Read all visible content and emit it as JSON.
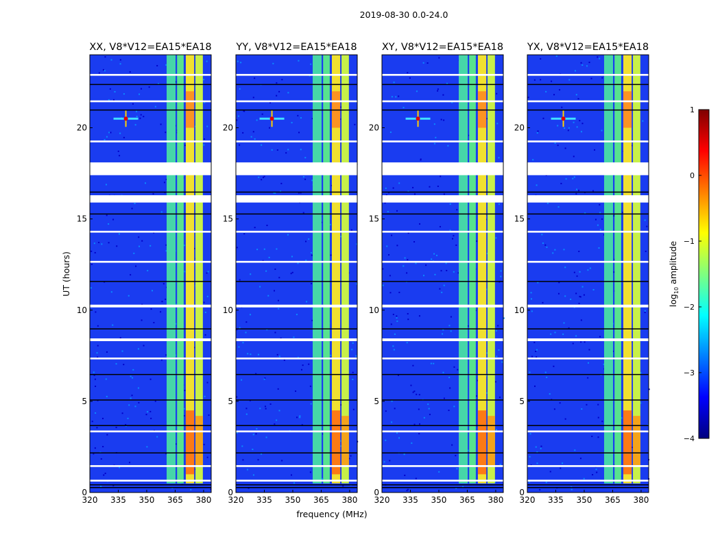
{
  "chart_data": {
    "type": "heatmap",
    "suptitle": "2019-08-30 0.0-24.0",
    "xlabel": "frequency (MHz)",
    "ylabel": "UT (hours)",
    "xlim": [
      320,
      384
    ],
    "ylim": [
      0,
      24
    ],
    "xticks": [
      "320",
      "335",
      "350",
      "365",
      "380"
    ],
    "xtick_values": [
      320,
      335,
      350,
      365,
      380
    ],
    "yticks": [
      "0",
      "5",
      "10",
      "15",
      "20"
    ],
    "ytick_values": [
      0,
      5,
      10,
      15,
      20
    ],
    "panels": [
      {
        "title": "XX, V8*V12=EA15*EA18"
      },
      {
        "title": "YY, V8*V12=EA15*EA18"
      },
      {
        "title": "XY, V8*V12=EA15*EA18"
      },
      {
        "title": "YX, V8*V12=EA15*EA18"
      }
    ],
    "colorbar": {
      "label_prefix": "log",
      "label_sub": "10",
      "label_suffix": " amplitude",
      "range": [
        -4,
        1
      ],
      "ticks": [
        "1",
        "0",
        "−1",
        "−2",
        "−3",
        "−4"
      ],
      "tick_values": [
        1,
        0,
        -1,
        -2,
        -3,
        -4
      ],
      "colormap": [
        "#00007f",
        "#0000ff",
        "#007fff",
        "#00ffff",
        "#7fff7f",
        "#ffff00",
        "#ff7f00",
        "#ff0000",
        "#7f0000"
      ]
    },
    "background_level": -3.2,
    "rfi_bands": [
      {
        "f0": 360.5,
        "f1": 365.2,
        "t0": 0.5,
        "t1": 24,
        "color": "#46d6a8"
      },
      {
        "f0": 366.0,
        "f1": 369.5,
        "t0": 0.5,
        "t1": 24,
        "color": "#58e28e"
      },
      {
        "f0": 370.6,
        "f1": 375.0,
        "t0": 0.5,
        "t1": 24,
        "color": "#f0e030"
      },
      {
        "f0": 375.7,
        "f1": 379.6,
        "t0": 0.5,
        "t1": 24,
        "color": "#c8f048"
      }
    ],
    "hot_segments": [
      {
        "f0": 370.6,
        "f1": 375.0,
        "t0": 1.0,
        "t1": 4.5,
        "color": "#ff6010"
      },
      {
        "f0": 375.7,
        "f1": 379.6,
        "t0": 1.5,
        "t1": 4.2,
        "color": "#ff9010"
      },
      {
        "f0": 370.6,
        "f1": 375.0,
        "t0": 20.0,
        "t1": 22.0,
        "color": "#ff8020"
      }
    ],
    "point_source": {
      "f": 339,
      "t": 20.5
    },
    "data_gaps_hours": [
      [
        17.4,
        18.1
      ],
      [
        15.9,
        16.3
      ],
      [
        10.15,
        10.3
      ],
      [
        8.3,
        8.45
      ],
      [
        14.25,
        14.35
      ],
      [
        22.85,
        22.95
      ],
      [
        21.4,
        21.5
      ],
      [
        7.3,
        7.4
      ],
      [
        1.4,
        1.5
      ],
      [
        0.6,
        0.7
      ],
      [
        3.3,
        3.4
      ],
      [
        12.6,
        12.7
      ],
      [
        19.2,
        19.3
      ]
    ],
    "dark_rows_hours": [
      0.3,
      0.45,
      2.2,
      3.7,
      5.1,
      6.5,
      9.0,
      11.6,
      15.3,
      16.5,
      21.0,
      22.4
    ]
  }
}
